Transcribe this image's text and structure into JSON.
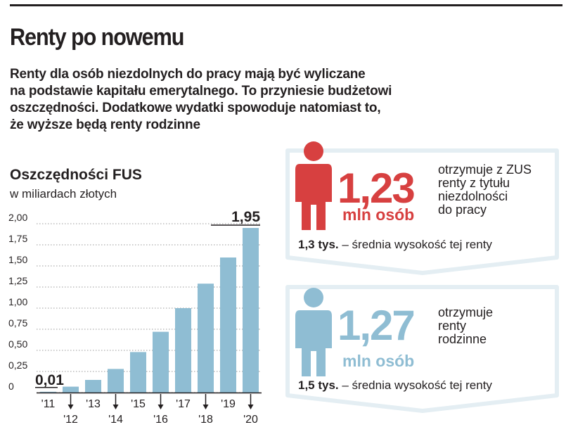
{
  "header": {
    "title": "Renty po nowemu",
    "lead_lines": [
      "Renty dla osób niezdolnych do pracy mają być wyliczane",
      "na podstawie kapitału emerytalnego. To przyniesie budżetowi",
      "oszczędności. Dodatkowe wydatki spowoduje natomiast to,",
      "że wyższe będą renty rodzinne"
    ]
  },
  "chart_data": {
    "type": "bar",
    "title": "Oszczędności FUS",
    "subtitle": "w miliardach złotych",
    "categories": [
      "'11",
      "'12",
      "'13",
      "'14",
      "'15",
      "'16",
      "'17",
      "'18",
      "'19",
      "'20"
    ],
    "values": [
      0.01,
      0.07,
      0.15,
      0.28,
      0.48,
      0.72,
      1.0,
      1.29,
      1.6,
      1.95
    ],
    "ylim": [
      0,
      2.0
    ],
    "yticks": [
      "0",
      "0,25",
      "0,50",
      "0,75",
      "1,00",
      "1,25",
      "1,50",
      "1,75",
      "2,00"
    ],
    "data_labels": [
      {
        "index": 0,
        "text": "0,01"
      },
      {
        "index": 9,
        "text": "1,95"
      }
    ],
    "grid": true,
    "bar_color": "#8fbdd3"
  },
  "cards": [
    {
      "value": "1,23",
      "unit": "mln osób",
      "desc_lines": [
        "otrzymuje z ZUS",
        "renty z tytułu",
        "niezdolności",
        "do pracy"
      ],
      "avg_value": "1,3 tys.",
      "avg_text": " – średnia wysokość tej renty",
      "color": "#d74040",
      "icon": "person-icon"
    },
    {
      "value": "1,27",
      "unit": "mln osób",
      "desc_lines": [
        "otrzymuje",
        "renty",
        "rodzinne"
      ],
      "avg_value": "1,5 tys.",
      "avg_text": " – średnia wysokość tej renty",
      "color": "#8fbdd3",
      "icon": "person-icon"
    }
  ]
}
